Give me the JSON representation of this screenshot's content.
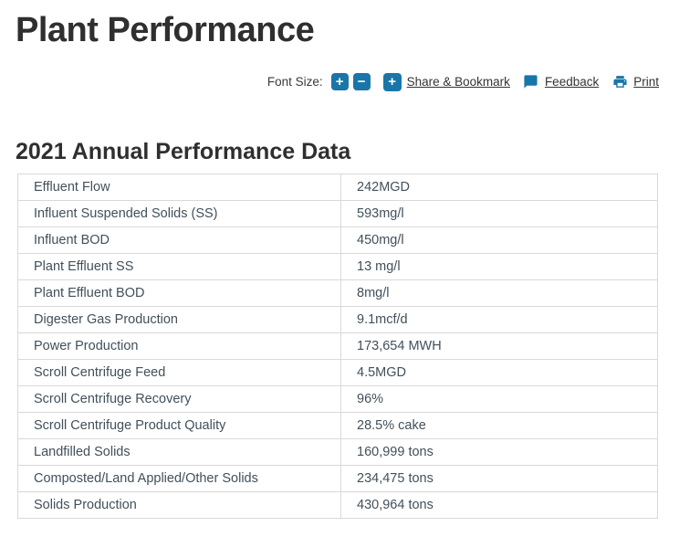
{
  "page": {
    "title": "Plant Performance"
  },
  "toolbar": {
    "font_size_label": "Font Size:",
    "increase_glyph": "+",
    "decrease_glyph": "−",
    "share_icon_glyph": "+",
    "share_label": "Share & Bookmark",
    "feedback_label": "Feedback",
    "print_label": "Print"
  },
  "section": {
    "heading": "2021 Annual Performance Data"
  },
  "table": {
    "rows": [
      {
        "label": "Effluent Flow",
        "value": "242MGD"
      },
      {
        "label": "Influent Suspended Solids (SS)",
        "value": "593mg/l"
      },
      {
        "label": "Influent BOD",
        "value": "450mg/l"
      },
      {
        "label": "Plant Effluent SS",
        "value": "13 mg/l"
      },
      {
        "label": "Plant Effluent BOD",
        "value": "8mg/l"
      },
      {
        "label": "Digester Gas Production",
        "value": "9.1mcf/d"
      },
      {
        "label": "Power Production",
        "value": "173,654 MWH"
      },
      {
        "label": "Scroll Centrifuge Feed",
        "value": "4.5MGD"
      },
      {
        "label": "Scroll Centrifuge Recovery",
        "value": "96%"
      },
      {
        "label": "Scroll Centrifuge Product Quality",
        "value": "28.5% cake"
      },
      {
        "label": "Landfilled Solids",
        "value": "160,999 tons"
      },
      {
        "label": "Composted/Land Applied/Other Solids",
        "value": "234,475 tons"
      },
      {
        "label": "Solids Production",
        "value": "430,964 tons"
      }
    ]
  },
  "colors": {
    "accent_blue": "#1a76a8",
    "heading_text": "#2f2f2f",
    "link_text": "#333333",
    "cell_text": "#41505b",
    "table_border": "#d9d9d9"
  },
  "icons": {
    "font_increase": "plus-square-icon",
    "font_decrease": "minus-square-icon",
    "share": "plus-square-icon",
    "feedback": "speech-bubble-icon",
    "print": "printer-icon"
  }
}
